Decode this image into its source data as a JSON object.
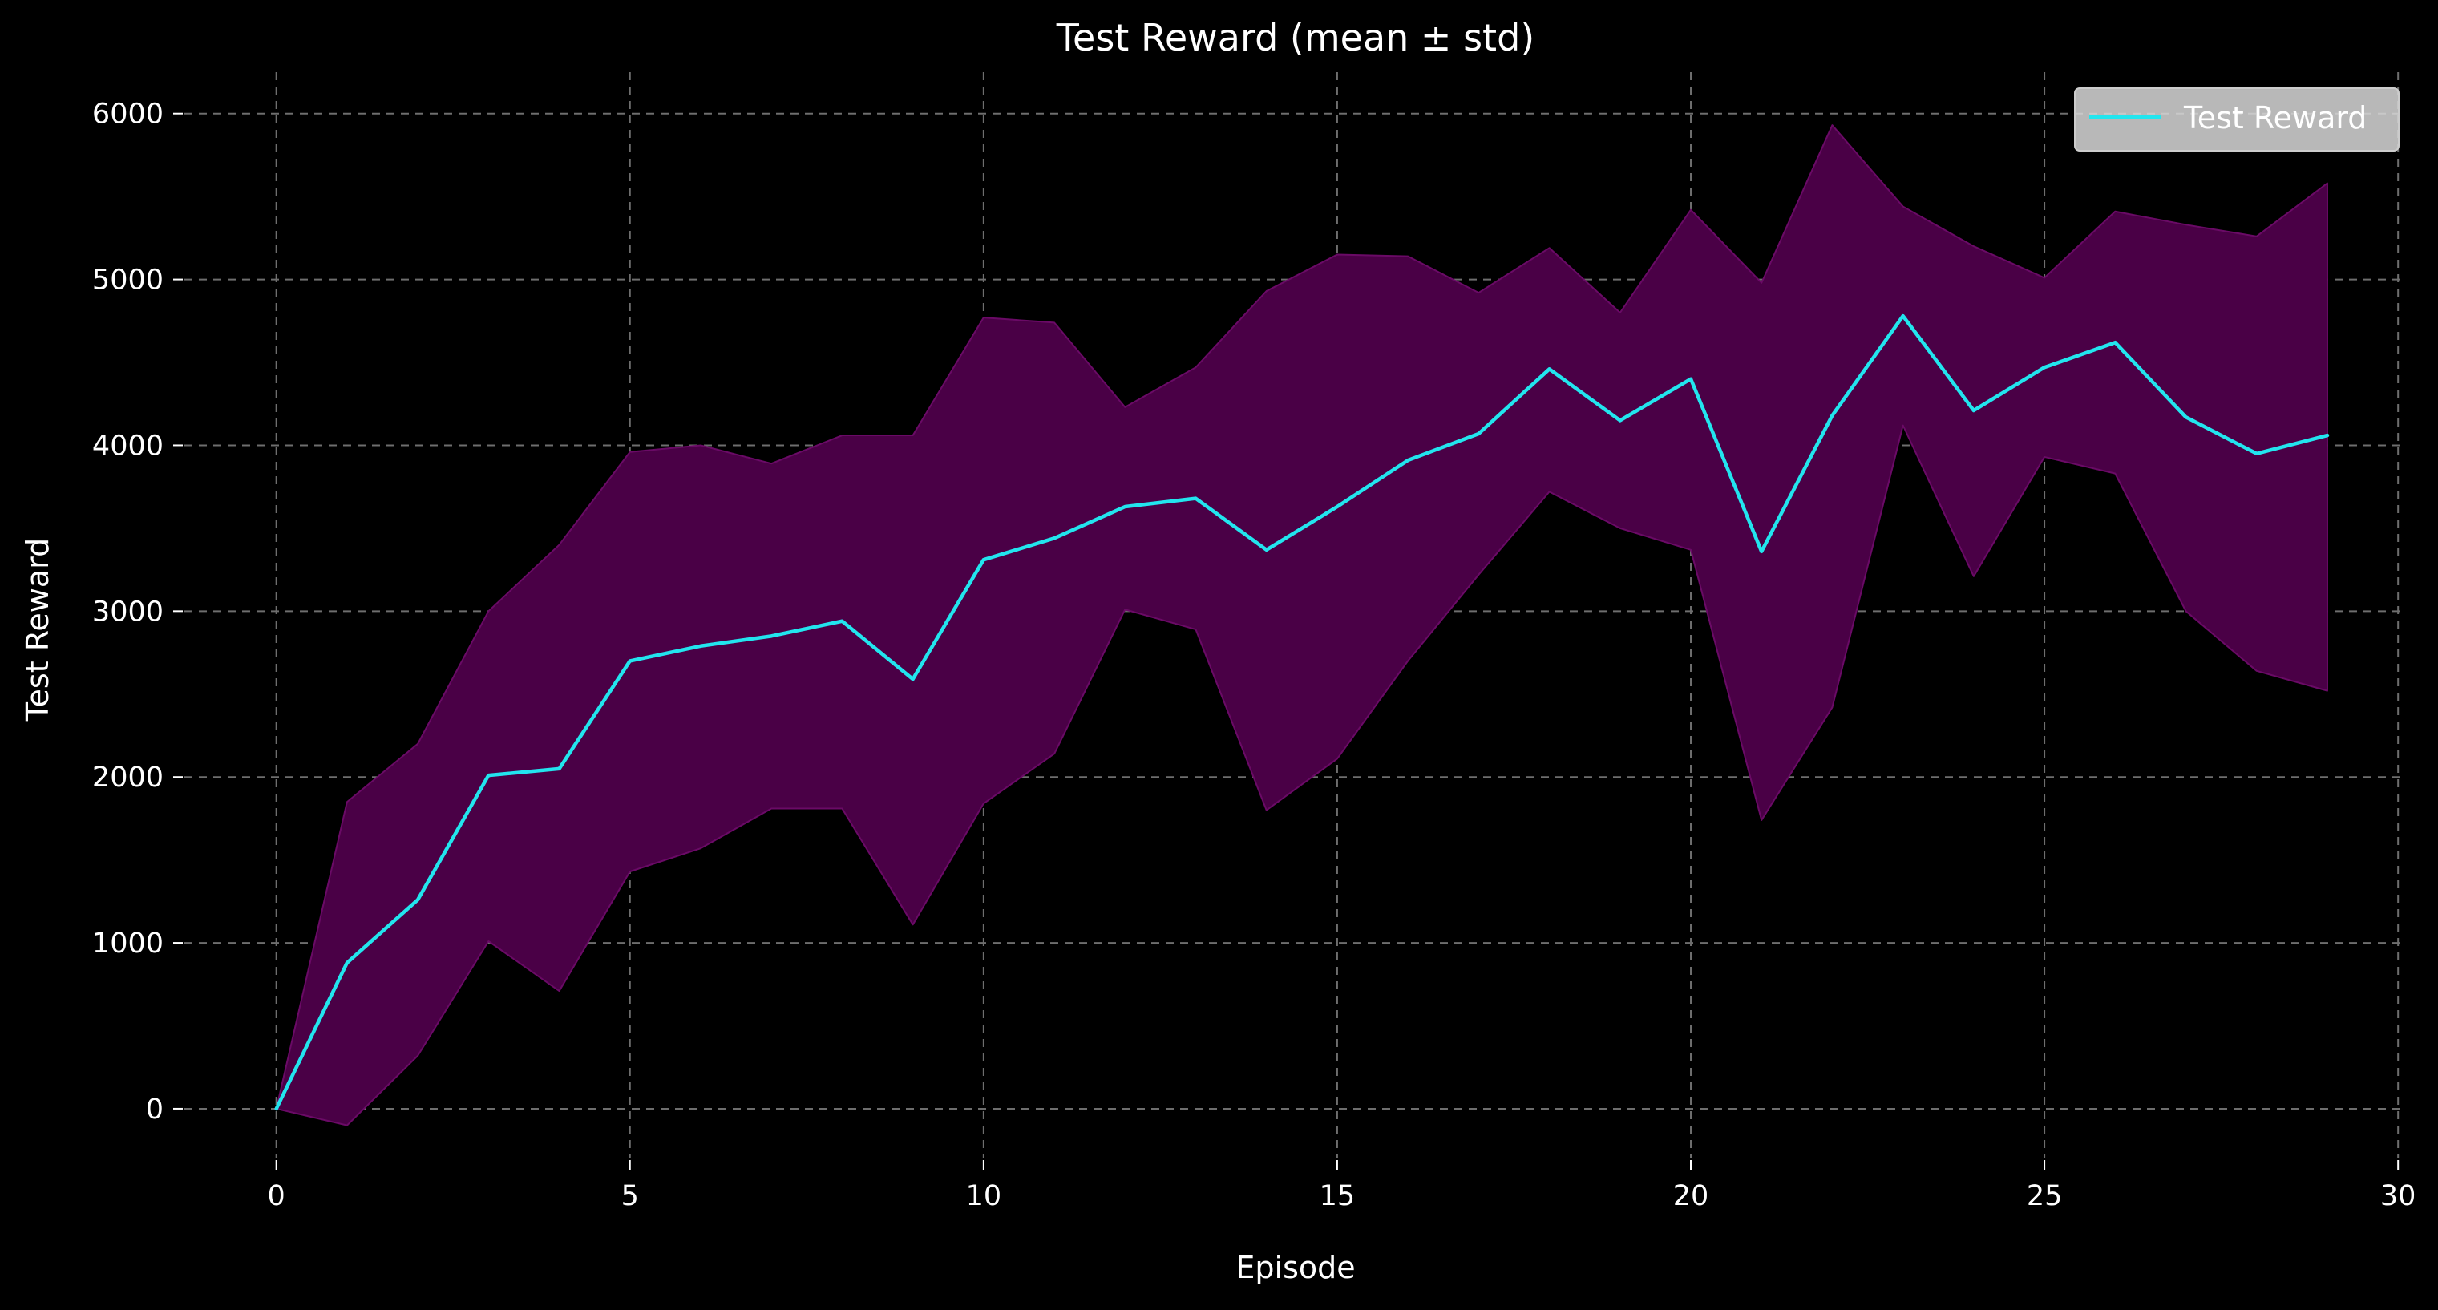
{
  "chart_data": {
    "type": "line",
    "title": "Test Reward (mean ± std)",
    "xlabel": "Episode",
    "ylabel": "Test Reward",
    "xlim": [
      -1.3,
      30.1
    ],
    "ylim": [
      -300,
      6250
    ],
    "xticks": [
      0,
      5,
      10,
      15,
      20,
      25,
      30
    ],
    "yticks": [
      0,
      1000,
      2000,
      3000,
      4000,
      5000,
      6000
    ],
    "grid": true,
    "legend_position": "top-right",
    "series": [
      {
        "name": "Test Reward",
        "color": "#22e5ee",
        "band_color": "#4a0046",
        "band_edge_color": "#6a0a66",
        "x": [
          0,
          1,
          2,
          3,
          4,
          5,
          6,
          7,
          8,
          9,
          10,
          11,
          12,
          13,
          14,
          15,
          16,
          17,
          18,
          19,
          20,
          21,
          22,
          23,
          24,
          25,
          26,
          27,
          28,
          29
        ],
        "mean": [
          0,
          880,
          1260,
          2010,
          2050,
          2700,
          2790,
          2850,
          2940,
          2590,
          3310,
          3440,
          3630,
          3680,
          3370,
          3630,
          3910,
          4070,
          4460,
          4150,
          4400,
          3360,
          4180,
          4780,
          4210,
          4470,
          4620,
          4170,
          3950,
          4060
        ],
        "upper": [
          0,
          1850,
          2200,
          3000,
          3400,
          3960,
          4000,
          3890,
          4060,
          4060,
          4770,
          4740,
          4230,
          4470,
          4930,
          5150,
          5140,
          4920,
          5190,
          4800,
          5420,
          4980,
          5930,
          5440,
          5200,
          5010,
          5410,
          5330,
          5260,
          5580
        ],
        "lower": [
          0,
          -100,
          320,
          1010,
          710,
          1430,
          1570,
          1810,
          1810,
          1110,
          1840,
          2140,
          3010,
          2890,
          1800,
          2110,
          2700,
          3220,
          3720,
          3500,
          3370,
          1740,
          2420,
          4120,
          3210,
          3930,
          3830,
          3000,
          2640,
          2520
        ]
      }
    ]
  }
}
